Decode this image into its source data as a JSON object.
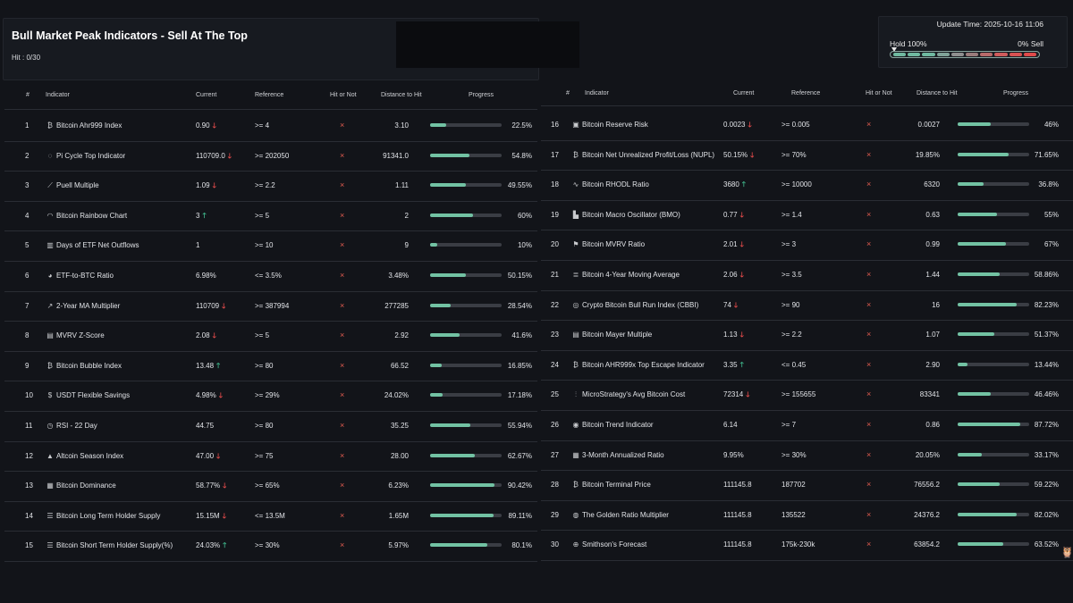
{
  "header": {
    "title": "Bull Market Peak Indicators - Sell At The Top",
    "hit_count": "Hit : 0/30"
  },
  "side": {
    "update_time": "Update Time: 2025-10-16 11:06",
    "hold_label": "Hold 100%",
    "sell_label": "0% Sell",
    "gauge_hold_fraction": 1.0,
    "gauge_segments": [
      "#6fb9a0",
      "#6fb9a0",
      "#6fb9a0",
      "#7fa398",
      "#8f8f8f",
      "#9a7b7b",
      "#b86a6a",
      "#cf5b5b",
      "#d95252",
      "#e04a4a"
    ]
  },
  "table_headers": {
    "num": "#",
    "indicator": "Indicator",
    "current": "Current",
    "reference": "Reference",
    "hit": "Hit or Not",
    "distance": "Distance to Hit",
    "progress": "Progress"
  },
  "hit_mark": "×",
  "colors": {
    "accent": "#72c2a3",
    "up": "#3fb68b",
    "down": "#e04a4a",
    "miss": "#e05b4f"
  },
  "left_rows": [
    {
      "num": "1",
      "icon": "₿",
      "name": "Bitcoin Ahr999 Index",
      "current": "0.90",
      "trend": "down",
      "reference": ">= 4",
      "distance": "3.10",
      "progress_text": "22.5%",
      "progress": 22.5
    },
    {
      "num": "2",
      "icon": "◌",
      "name": "Pi Cycle Top Indicator",
      "current": "110709.0",
      "trend": "down",
      "reference": ">= 202050",
      "distance": "91341.0",
      "progress_text": "54.8%",
      "progress": 54.8
    },
    {
      "num": "3",
      "icon": "⟋",
      "name": "Puell Multiple",
      "current": "1.09",
      "trend": "down",
      "reference": ">= 2.2",
      "distance": "1.11",
      "progress_text": "49.55%",
      "progress": 49.55
    },
    {
      "num": "4",
      "icon": "◠",
      "name": "Bitcoin Rainbow Chart",
      "current": "3",
      "trend": "up",
      "reference": ">= 5",
      "distance": "2",
      "progress_text": "60%",
      "progress": 60
    },
    {
      "num": "5",
      "icon": "▥",
      "name": "Days of ETF Net Outflows",
      "current": "1",
      "trend": "",
      "reference": ">= 10",
      "distance": "9",
      "progress_text": "10%",
      "progress": 10
    },
    {
      "num": "6",
      "icon": "◕",
      "name": "ETF-to-BTC Ratio",
      "current": "6.98%",
      "trend": "",
      "reference": "<= 3.5%",
      "distance": "3.48%",
      "progress_text": "50.15%",
      "progress": 50.15
    },
    {
      "num": "7",
      "icon": "↗",
      "name": "2-Year MA Multiplier",
      "current": "110709",
      "trend": "down",
      "reference": ">= 387994",
      "distance": "277285",
      "progress_text": "28.54%",
      "progress": 28.54
    },
    {
      "num": "8",
      "icon": "▤",
      "name": "MVRV Z-Score",
      "current": "2.08",
      "trend": "down",
      "reference": ">= 5",
      "distance": "2.92",
      "progress_text": "41.6%",
      "progress": 41.6
    },
    {
      "num": "9",
      "icon": "₿",
      "name": "Bitcoin Bubble Index",
      "current": "13.48",
      "trend": "up",
      "reference": ">= 80",
      "distance": "66.52",
      "progress_text": "16.85%",
      "progress": 16.85
    },
    {
      "num": "10",
      "icon": "$",
      "name": "USDT Flexible Savings",
      "current": "4.98%",
      "trend": "down",
      "reference": ">= 29%",
      "distance": "24.02%",
      "progress_text": "17.18%",
      "progress": 17.18
    },
    {
      "num": "11",
      "icon": "◷",
      "name": "RSI - 22 Day",
      "current": "44.75",
      "trend": "",
      "reference": ">= 80",
      "distance": "35.25",
      "progress_text": "55.94%",
      "progress": 55.94
    },
    {
      "num": "12",
      "icon": "▲",
      "name": "Altcoin Season Index",
      "current": "47.00",
      "trend": "down",
      "reference": ">= 75",
      "distance": "28.00",
      "progress_text": "62.67%",
      "progress": 62.67
    },
    {
      "num": "13",
      "icon": "▦",
      "name": "Bitcoin Dominance",
      "current": "58.77%",
      "trend": "down",
      "reference": ">= 65%",
      "distance": "6.23%",
      "progress_text": "90.42%",
      "progress": 90.42
    },
    {
      "num": "14",
      "icon": "☰",
      "name": "Bitcoin Long Term Holder Supply",
      "current": "15.15M",
      "trend": "down",
      "reference": "<= 13.5M",
      "distance": "1.65M",
      "progress_text": "89.11%",
      "progress": 89.11
    },
    {
      "num": "15",
      "icon": "☰",
      "name": "Bitcoin Short Term Holder Supply(%)",
      "current": "24.03%",
      "trend": "up",
      "reference": ">= 30%",
      "distance": "5.97%",
      "progress_text": "80.1%",
      "progress": 80.1
    }
  ],
  "right_rows": [
    {
      "num": "16",
      "icon": "▣",
      "name": "Bitcoin Reserve Risk",
      "current": "0.0023",
      "trend": "down",
      "reference": ">= 0.005",
      "distance": "0.0027",
      "progress_text": "46%",
      "progress": 46
    },
    {
      "num": "17",
      "icon": "₿",
      "name": "Bitcoin Net Unrealized Profit/Loss (NUPL)",
      "current": "50.15%",
      "trend": "down",
      "reference": ">= 70%",
      "distance": "19.85%",
      "progress_text": "71.65%",
      "progress": 71.65
    },
    {
      "num": "18",
      "icon": "∿",
      "name": "Bitcoin RHODL Ratio",
      "current": "3680",
      "trend": "up",
      "reference": ">= 10000",
      "distance": "6320",
      "progress_text": "36.8%",
      "progress": 36.8
    },
    {
      "num": "19",
      "icon": "▙",
      "name": "Bitcoin Macro Oscillator (BMO)",
      "current": "0.77",
      "trend": "down",
      "reference": ">= 1.4",
      "distance": "0.63",
      "progress_text": "55%",
      "progress": 55
    },
    {
      "num": "20",
      "icon": "⚑",
      "name": "Bitcoin MVRV Ratio",
      "current": "2.01",
      "trend": "down",
      "reference": ">= 3",
      "distance": "0.99",
      "progress_text": "67%",
      "progress": 67
    },
    {
      "num": "21",
      "icon": "≣",
      "name": "Bitcoin 4-Year Moving Average",
      "current": "2.06",
      "trend": "down",
      "reference": ">= 3.5",
      "distance": "1.44",
      "progress_text": "58.86%",
      "progress": 58.86
    },
    {
      "num": "22",
      "icon": "◎",
      "name": "Crypto Bitcoin Bull Run Index (CBBI)",
      "current": "74",
      "trend": "down",
      "reference": ">= 90",
      "distance": "16",
      "progress_text": "82.23%",
      "progress": 82.23
    },
    {
      "num": "23",
      "icon": "▤",
      "name": "Bitcoin Mayer Multiple",
      "current": "1.13",
      "trend": "down",
      "reference": ">= 2.2",
      "distance": "1.07",
      "progress_text": "51.37%",
      "progress": 51.37
    },
    {
      "num": "24",
      "icon": "₿",
      "name": "Bitcoin AHR999x Top Escape Indicator",
      "current": "3.35",
      "trend": "up",
      "reference": "<= 0.45",
      "distance": "2.90",
      "progress_text": "13.44%",
      "progress": 13.44
    },
    {
      "num": "25",
      "icon": "⫶",
      "name": "MicroStrategy's Avg Bitcoin Cost",
      "current": "72314",
      "trend": "down",
      "reference": ">= 155655",
      "distance": "83341",
      "progress_text": "46.46%",
      "progress": 46.46
    },
    {
      "num": "26",
      "icon": "◉",
      "name": "Bitcoin Trend Indicator",
      "current": "6.14",
      "trend": "",
      "reference": ">= 7",
      "distance": "0.86",
      "progress_text": "87.72%",
      "progress": 87.72
    },
    {
      "num": "27",
      "icon": "▦",
      "name": "3-Month Annualized Ratio",
      "current": "9.95%",
      "trend": "",
      "reference": ">= 30%",
      "distance": "20.05%",
      "progress_text": "33.17%",
      "progress": 33.17
    },
    {
      "num": "28",
      "icon": "₿",
      "name": "Bitcoin Terminal Price",
      "current": "111145.8",
      "trend": "",
      "reference": "187702",
      "distance": "76556.2",
      "progress_text": "59.22%",
      "progress": 59.22
    },
    {
      "num": "29",
      "icon": "◍",
      "name": "The Golden Ratio Multiplier",
      "current": "111145.8",
      "trend": "",
      "reference": "135522",
      "distance": "24376.2",
      "progress_text": "82.02%",
      "progress": 82.02
    },
    {
      "num": "30",
      "icon": "⊕",
      "name": "Smithson's Forecast",
      "current": "111145.8",
      "trend": "",
      "reference": "175k-230k",
      "distance": "63854.2",
      "progress_text": "63.52%",
      "progress": 63.52
    }
  ]
}
